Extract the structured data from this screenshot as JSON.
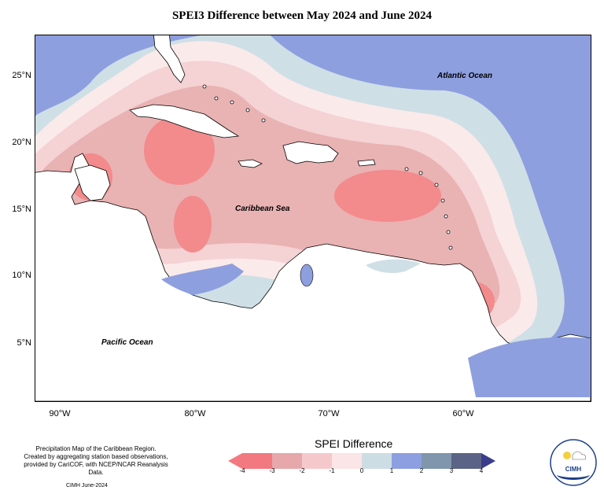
{
  "title": "SPEI3 Difference between May 2024 and June 2024",
  "map": {
    "lat_labels": [
      "25°N",
      "20°N",
      "15°N",
      "10°N",
      "5°N"
    ],
    "lon_labels": [
      "90°W",
      "80°W",
      "70°W",
      "60°W"
    ],
    "ocean_labels": {
      "atlantic": "Atlantic Ocean",
      "caribbean": "Caribbean Sea",
      "pacific": "Pacific Ocean"
    }
  },
  "legend": {
    "title": "SPEI Difference",
    "ticks": [
      "-4",
      "-3",
      "-2",
      "-1",
      "0",
      "1",
      "2",
      "3",
      "4"
    ],
    "colors": [
      "#f2797f",
      "#e6a8ab",
      "#f5c9cc",
      "#fbe5e6",
      "#ccdde4",
      "#8d9fe0",
      "#7f96ad",
      "#5b6386"
    ]
  },
  "colors": {
    "strong_neg": "#f38a8c",
    "neg": "#e9b2b3",
    "light_neg": "#f5d2d4",
    "faint_neg": "#fbeaea",
    "light_pos": "#cfdfe6",
    "pos": "#8e9fdf",
    "land": "#ffffff"
  },
  "footer": {
    "line1": "Precipitation Map of the Caribbean Region.",
    "line2": "Created by aggregating station based observations,",
    "line3": "provided by CariCOF, with NCEP/NCAR Reanalysis Data.",
    "credit": "CIMH June-2024"
  },
  "logo": {
    "text": "CIMH"
  }
}
